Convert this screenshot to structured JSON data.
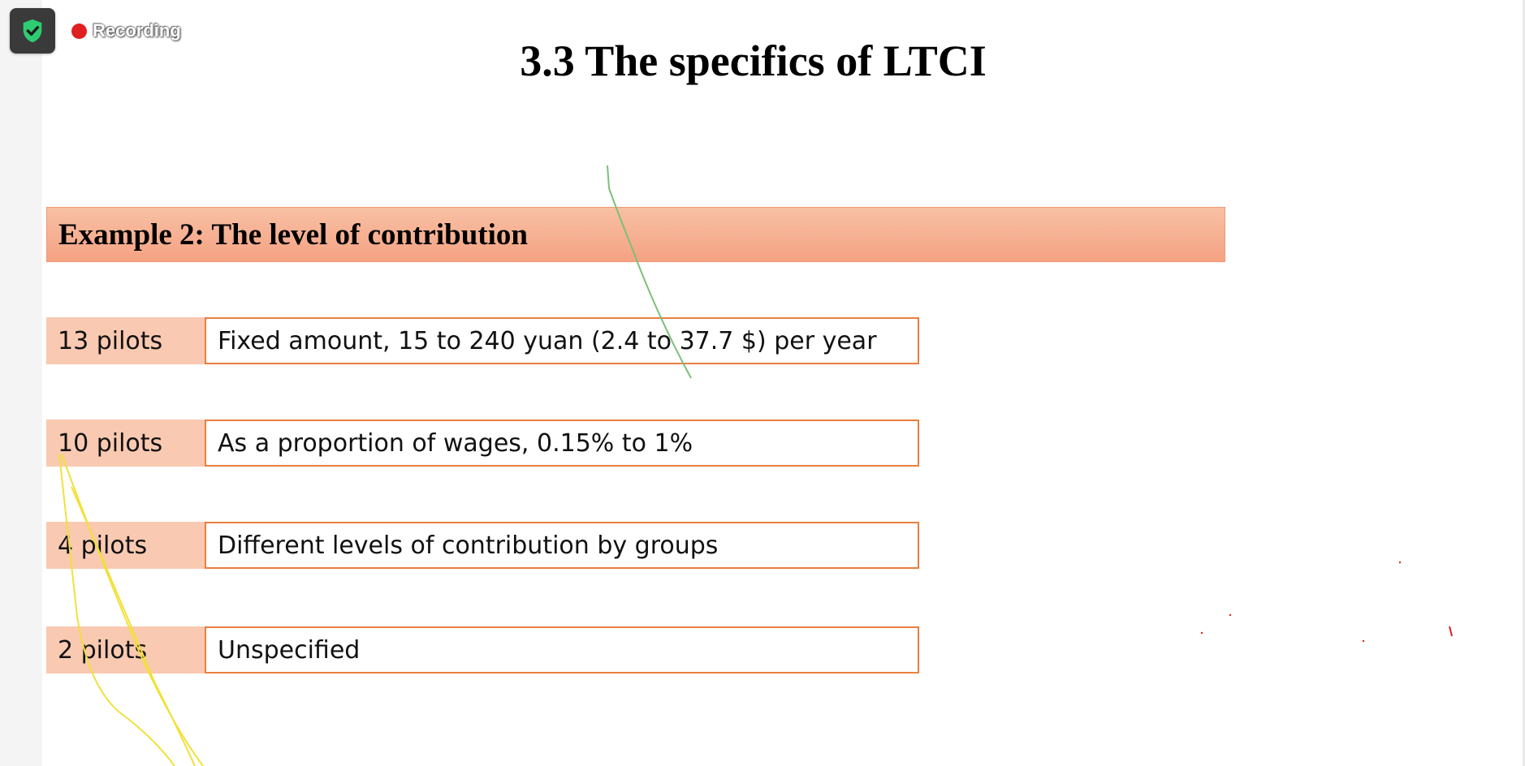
{
  "recording": {
    "label": "Recording"
  },
  "slide": {
    "title": "3.3 The specifics of LTCI",
    "section_header": "Example 2: The level of contribution",
    "rows": [
      {
        "label": "13 pilots",
        "description": "Fixed amount, 15 to 240 yuan (2.4 to 37.7 $) per year"
      },
      {
        "label": "10 pilots",
        "description": "As a proportion of wages, 0.15% to 1%"
      },
      {
        "label": "4 pilots",
        "description": "Different levels of contribution by groups"
      },
      {
        "label": "2 pilots",
        "description": "Unspecified"
      }
    ]
  },
  "colors": {
    "header_fill": "#f5a283",
    "label_fill": "#f9c9b1",
    "box_border": "#e97f3f",
    "recording_dot": "#e02020",
    "shield_green": "#2ecc71",
    "annotation_green": "#7dbf7a",
    "annotation_yellow": "#f2e03a"
  },
  "icons": {
    "shield": "shield-check-icon",
    "recording": "recording-dot-icon"
  }
}
